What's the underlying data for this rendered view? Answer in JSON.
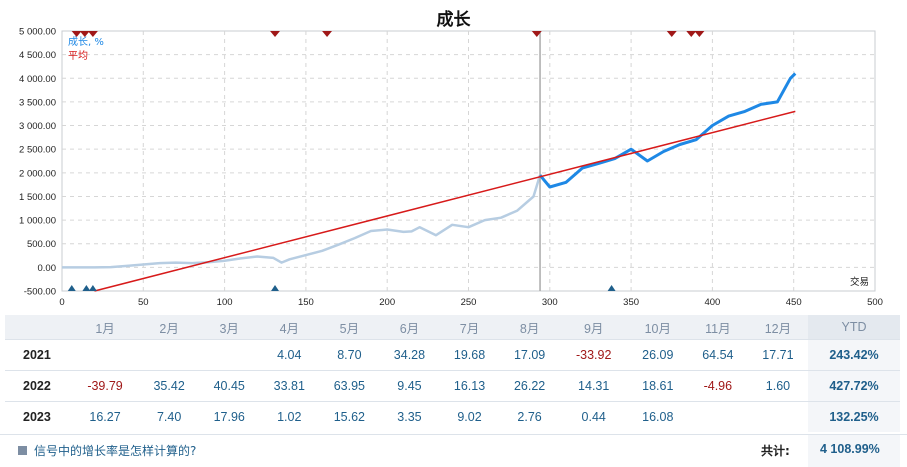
{
  "title": "成长",
  "chart_data": {
    "type": "line",
    "title": "成长",
    "xlabel": "交易",
    "ylabel": "",
    "xlim": [
      0,
      500
    ],
    "ylim": [
      -500,
      5000
    ],
    "x_ticks": [
      0,
      50,
      100,
      150,
      200,
      250,
      300,
      350,
      400,
      450,
      500
    ],
    "y_ticks": [
      -500,
      0,
      500,
      1000,
      1500,
      2000,
      2500,
      3000,
      3500,
      4000,
      4500,
      5000
    ],
    "y_tick_labels": [
      "-500.00",
      "0.00",
      "500.00",
      "1 000.00",
      "1 500.00",
      "2 000.00",
      "2 500.00",
      "3 000.00",
      "3 500.00",
      "4 000.00",
      "4 500.00",
      "5 000.00"
    ],
    "x_tick_labels": [
      "0",
      "50",
      "100",
      "150",
      "200",
      "250",
      "300",
      "350",
      "400",
      "450",
      "500"
    ],
    "grid": true,
    "legend_placement": "top-left",
    "divider_x": 294,
    "series": [
      {
        "name": "成长, %",
        "color": "#1e88e5",
        "faded_color": "#b7cde2",
        "points": [
          [
            0,
            0
          ],
          [
            20,
            0
          ],
          [
            30,
            5
          ],
          [
            40,
            30
          ],
          [
            50,
            60
          ],
          [
            60,
            90
          ],
          [
            70,
            100
          ],
          [
            80,
            90
          ],
          [
            90,
            110
          ],
          [
            100,
            140
          ],
          [
            110,
            190
          ],
          [
            120,
            230
          ],
          [
            130,
            200
          ],
          [
            135,
            100
          ],
          [
            140,
            170
          ],
          [
            150,
            260
          ],
          [
            160,
            350
          ],
          [
            170,
            480
          ],
          [
            180,
            620
          ],
          [
            190,
            770
          ],
          [
            200,
            800
          ],
          [
            210,
            750
          ],
          [
            215,
            760
          ],
          [
            220,
            850
          ],
          [
            230,
            680
          ],
          [
            240,
            900
          ],
          [
            250,
            850
          ],
          [
            260,
            1000
          ],
          [
            270,
            1050
          ],
          [
            280,
            1200
          ],
          [
            290,
            1500
          ],
          [
            294,
            1950
          ],
          [
            300,
            1700
          ],
          [
            310,
            1800
          ],
          [
            320,
            2100
          ],
          [
            330,
            2200
          ],
          [
            340,
            2300
          ],
          [
            350,
            2500
          ],
          [
            360,
            2250
          ],
          [
            370,
            2450
          ],
          [
            380,
            2600
          ],
          [
            390,
            2700
          ],
          [
            400,
            3000
          ],
          [
            410,
            3200
          ],
          [
            420,
            3300
          ],
          [
            430,
            3450
          ],
          [
            440,
            3500
          ],
          [
            448,
            4000
          ],
          [
            451,
            4100
          ]
        ]
      },
      {
        "name": "平均",
        "color": "#d71a1a",
        "points": [
          [
            20,
            -500
          ],
          [
            451,
            3300
          ]
        ]
      }
    ],
    "deal_markers_top": [
      9,
      14,
      19,
      131,
      163,
      292,
      375,
      387,
      392
    ],
    "deal_markers_bottom": [
      6,
      15,
      19,
      131,
      338
    ]
  },
  "table": {
    "headers": [
      "",
      "1月",
      "2月",
      "3月",
      "4月",
      "5月",
      "6月",
      "7月",
      "8月",
      "9月",
      "10月",
      "11月",
      "12月",
      "YTD"
    ],
    "rows": [
      {
        "year": "2021",
        "values": [
          "",
          "",
          "",
          "4.04",
          "8.70",
          "34.28",
          "19.68",
          "17.09",
          "-33.92",
          "26.09",
          "64.54",
          "17.71"
        ],
        "ytd": "243.42%"
      },
      {
        "year": "2022",
        "values": [
          "-39.79",
          "35.42",
          "40.45",
          "33.81",
          "63.95",
          "9.45",
          "16.13",
          "26.22",
          "14.31",
          "18.61",
          "-4.96",
          "1.60"
        ],
        "ytd": "427.72%"
      },
      {
        "year": "2023",
        "values": [
          "16.27",
          "7.40",
          "17.96",
          "1.02",
          "15.62",
          "3.35",
          "9.02",
          "2.76",
          "0.44",
          "16.08",
          "",
          ""
        ],
        "ytd": "132.25%"
      }
    ]
  },
  "footer": {
    "help_link": "信号中的增长率是怎样计算的?",
    "total_label": "共计:",
    "total_value": "4 108.99%"
  }
}
